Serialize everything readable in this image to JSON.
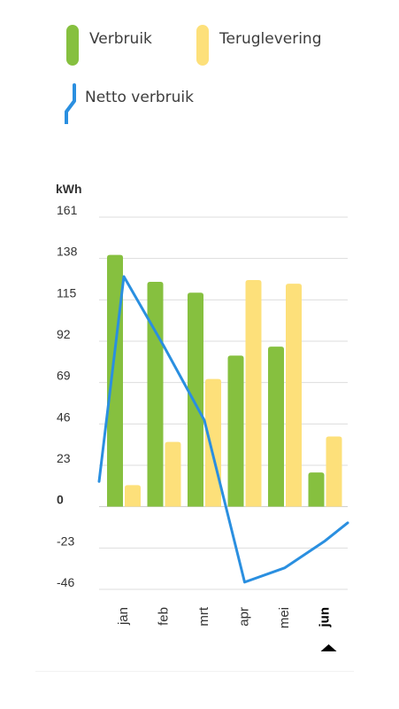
{
  "legend": {
    "verbruik": "Verbruik",
    "teruglevering": "Teruglevering",
    "netto": "Netto verbruik"
  },
  "colors": {
    "verbruik": "#86c03f",
    "teruglevering": "#fde07a",
    "netto": "#2a8fe0",
    "grid": "#dddddd",
    "text": "#333333"
  },
  "chart_data": {
    "type": "bar",
    "ylabel": "kWh",
    "ylim": [
      -46,
      161
    ],
    "yticks": [
      161,
      138,
      115,
      92,
      69,
      46,
      23,
      0,
      -23,
      -46
    ],
    "categories": [
      "jan",
      "feb",
      "mrt",
      "apr",
      "mei",
      "jun"
    ],
    "selected_category": "jun",
    "series": [
      {
        "name": "Verbruik",
        "type": "bar",
        "values": [
          140,
          125,
          119,
          84,
          89,
          19
        ]
      },
      {
        "name": "Teruglevering",
        "type": "bar",
        "values": [
          12,
          36,
          71,
          126,
          124,
          39
        ]
      },
      {
        "name": "Netto verbruik",
        "type": "line",
        "values": [
          128,
          89,
          48,
          -42,
          -34,
          -19
        ]
      }
    ],
    "line_start": 14,
    "line_end": -9
  }
}
